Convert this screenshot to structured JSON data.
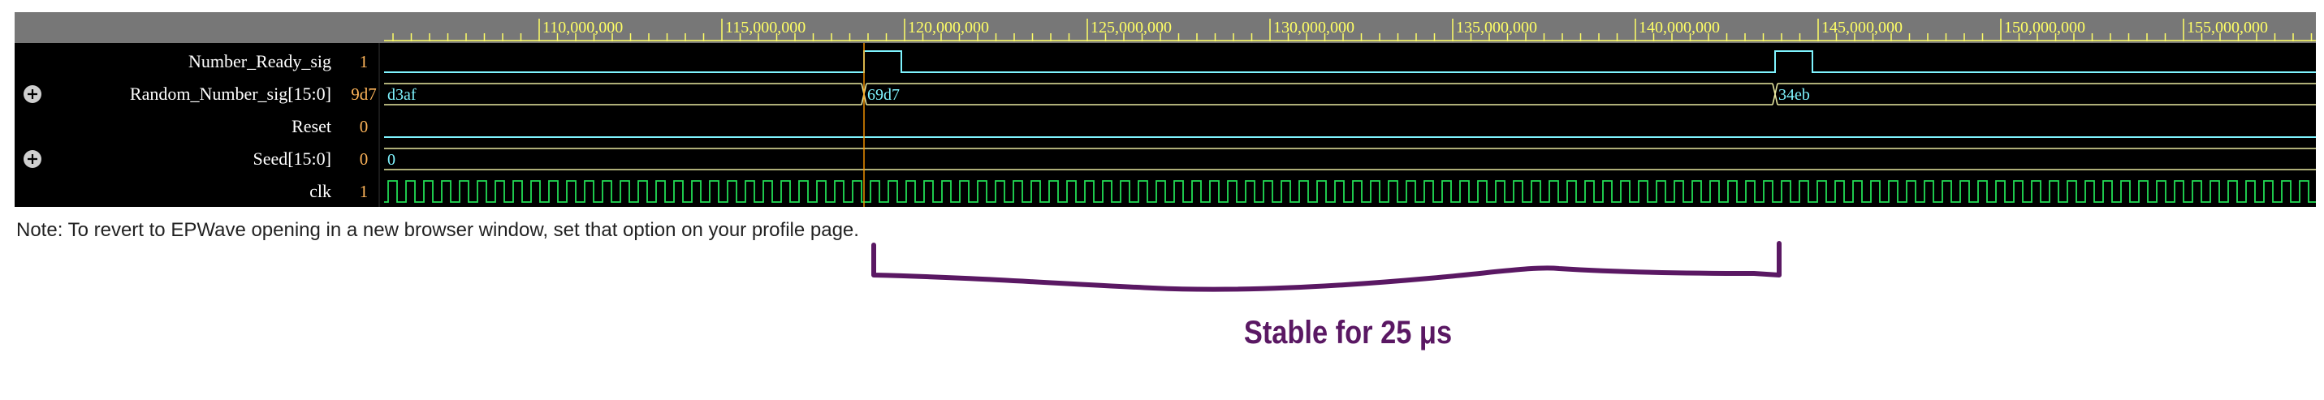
{
  "timeline": {
    "tick_labels": [
      "110,000,000",
      "115,000,000",
      "120,000,000",
      "125,000,000",
      "130,000,000",
      "135,000,000",
      "140,000,000",
      "145,000,000",
      "150,000,000",
      "155,000,000"
    ]
  },
  "signals": [
    {
      "name": "Number_Ready_sig",
      "value": "1",
      "expandable": false,
      "type": "bit"
    },
    {
      "name": "Random_Number_sig[15:0]",
      "value": "9d7",
      "expandable": true,
      "type": "bus",
      "segments": [
        "d3af",
        "69d7",
        "34eb"
      ]
    },
    {
      "name": "Reset",
      "value": "0",
      "expandable": false,
      "type": "bit"
    },
    {
      "name": "Seed[15:0]",
      "value": "0",
      "expandable": true,
      "type": "bus",
      "segments": [
        "0"
      ]
    },
    {
      "name": "clk",
      "value": "1",
      "expandable": false,
      "type": "clock"
    }
  ],
  "colors": {
    "header_bg": "#777777",
    "wave_bg": "#000000",
    "tick_text": "#ffff66",
    "bit_wave": "#7ff4ff",
    "bus_wave": "#e8e8a0",
    "clock_wave": "#22dd55",
    "cursor": "#ff9900",
    "annotation": "#5a1863"
  },
  "note": "Note: To revert to EPWave opening in a new browser window, set that option on your profile page.",
  "annotation": {
    "label": "Stable for 25 μs"
  }
}
